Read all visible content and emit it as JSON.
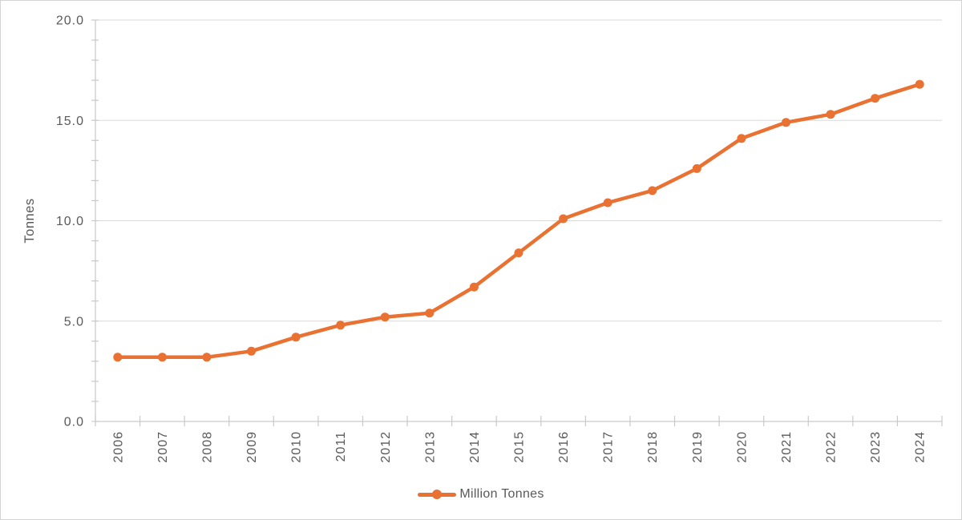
{
  "chart": {
    "y_axis_title": "Tonnes",
    "legend_label": "Million Tonnes",
    "colors": {
      "series": "#E97132",
      "grid": "#D9D9D9",
      "axis": "#C9C9C9",
      "tick": "#C9C9C9",
      "text": "#595959",
      "frame": "#D4D4D4",
      "background": "#FFFFFF"
    }
  },
  "chart_data": {
    "type": "line",
    "title": "",
    "xlabel": "",
    "ylabel": "Tonnes",
    "categories": [
      "2006",
      "2007",
      "2008",
      "2009",
      "2010",
      "2011",
      "2012",
      "2013",
      "2014",
      "2015",
      "2016",
      "2017",
      "2018",
      "2019",
      "2020",
      "2021",
      "2022",
      "2023",
      "2024"
    ],
    "series": [
      {
        "name": "Million Tonnes",
        "color": "#E97132",
        "values": [
          3.2,
          3.2,
          3.2,
          3.5,
          4.2,
          4.8,
          5.2,
          5.4,
          6.7,
          8.4,
          10.1,
          10.9,
          11.5,
          12.6,
          14.1,
          14.9,
          15.3,
          16.1,
          16.8
        ]
      }
    ],
    "ylim": [
      0,
      20
    ],
    "ytick_interval": 5,
    "y_minor_tick_interval": 1,
    "ytick_labels": [
      "0.0",
      "5.0",
      "10.0",
      "15.0",
      "20.0"
    ],
    "grid": "horizontal-major",
    "x_tick_style": "category-boundaries-cross",
    "x_label_rotation": -90,
    "legend_position": "bottom-center",
    "marker": "circle"
  }
}
